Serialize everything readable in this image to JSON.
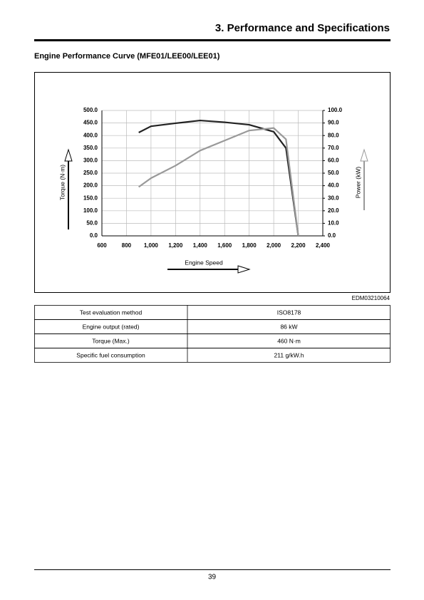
{
  "header": {
    "title": "3. Performance and Specifications"
  },
  "section": {
    "title": "Engine Performance Curve (MFE01/LEE00/LEE01)"
  },
  "chart_data": {
    "type": "line",
    "x": [
      900,
      1000,
      1200,
      1400,
      1600,
      1800,
      2000,
      2100,
      2200
    ],
    "series": [
      {
        "color": "#222222",
        "values": [
          412,
          437,
          449,
          460,
          453,
          443,
          415,
          350,
          0
        ]
      },
      {
        "color": "#999999",
        "axis": "y2",
        "values": [
          39,
          46,
          56,
          68,
          76,
          84,
          86,
          77,
          0
        ]
      }
    ],
    "xlim": [
      600,
      2400
    ],
    "xticks": [
      600,
      800,
      {
        "value": 1000,
        "label": "1,000"
      },
      {
        "value": 1200,
        "label": "1,200"
      },
      {
        "value": 1400,
        "label": "1,400"
      },
      {
        "value": 1600,
        "label": "1,600"
      },
      {
        "value": 1800,
        "label": "1,800"
      },
      {
        "value": 2000,
        "label": "2,000"
      },
      {
        "value": 2200,
        "label": "2,200"
      },
      {
        "value": 2400,
        "label": "2,400"
      }
    ],
    "ylim": [
      0,
      500
    ],
    "yticks": [
      {
        "value": 0,
        "label": "0.0"
      },
      {
        "value": 50,
        "label": "50.0"
      },
      {
        "value": 100,
        "label": "100.0"
      },
      {
        "value": 150,
        "label": "150.0"
      },
      {
        "value": 200,
        "label": "200.0"
      },
      {
        "value": 250,
        "label": "250.0"
      },
      {
        "value": 300,
        "label": "300.0"
      },
      {
        "value": 350,
        "label": "350.0"
      },
      {
        "value": 400,
        "label": "400.0"
      },
      {
        "value": 450,
        "label": "450.0"
      },
      {
        "value": 500,
        "label": "500.0"
      }
    ],
    "y2lim": [
      0,
      100
    ],
    "y2ticks": [
      {
        "value": 0,
        "label": "0.0"
      },
      {
        "value": 10,
        "label": "10.0"
      },
      {
        "value": 20,
        "label": "20.0"
      },
      {
        "value": 30,
        "label": "30.0"
      },
      {
        "value": 40,
        "label": "40.0"
      },
      {
        "value": 50,
        "label": "50.0"
      },
      {
        "value": 60,
        "label": "60.0"
      },
      {
        "value": 70,
        "label": "70.0"
      },
      {
        "value": 80,
        "label": "80.0"
      },
      {
        "value": 90,
        "label": "90.0"
      },
      {
        "value": 100,
        "label": "100.0"
      }
    ],
    "ylabel": "Torque (N·m)",
    "y2label": "Power (kW)",
    "xlabel": "Engine Speed",
    "grid": true,
    "figure_code": "EDM03210064"
  },
  "table": {
    "rows": [
      [
        "Test evaluation method",
        "ISO8178"
      ],
      [
        "Engine output (rated)",
        "86 kW"
      ],
      [
        "Torque (Max.)",
        "460 N·m"
      ],
      [
        "Specific fuel consumption",
        "211 g/kW.h"
      ]
    ]
  },
  "footer": {
    "page": "39"
  }
}
